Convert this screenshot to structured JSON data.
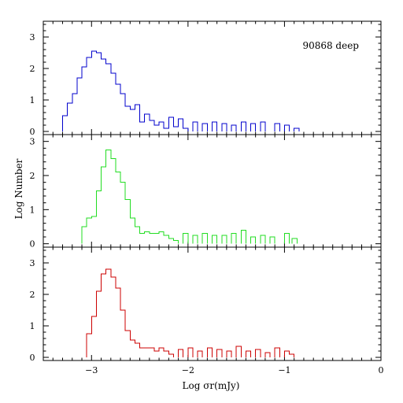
{
  "chart_data": {
    "type": "histogram",
    "xlabel": "Log σr(mJy)",
    "ylabel": "Log Number",
    "xlim": [
      -3.5,
      0
    ],
    "x_ticks": [
      -3,
      -2,
      -1,
      0
    ],
    "x_tick_labels": [
      "−3",
      "−2",
      "−1",
      "0"
    ],
    "bin_width": 0.05,
    "panels": [
      {
        "annotation": "90868 deep",
        "color": "#0000cc",
        "ylim": [
          -0.1,
          3.5
        ],
        "y_ticks": [
          0,
          1,
          2,
          3
        ],
        "y_tick_labels": [
          "0",
          "1",
          "2",
          "3"
        ],
        "bins": [
          [
            -3.3,
            0.5
          ],
          [
            -3.25,
            0.9
          ],
          [
            -3.2,
            1.2
          ],
          [
            -3.15,
            1.7
          ],
          [
            -3.1,
            2.05
          ],
          [
            -3.05,
            2.35
          ],
          [
            -3.0,
            2.55
          ],
          [
            -2.95,
            2.5
          ],
          [
            -2.9,
            2.3
          ],
          [
            -2.85,
            2.15
          ],
          [
            -2.8,
            1.85
          ],
          [
            -2.75,
            1.5
          ],
          [
            -2.7,
            1.2
          ],
          [
            -2.65,
            0.8
          ],
          [
            -2.6,
            0.7
          ],
          [
            -2.55,
            0.85
          ],
          [
            -2.5,
            0.3
          ],
          [
            -2.45,
            0.55
          ],
          [
            -2.4,
            0.35
          ],
          [
            -2.35,
            0.2
          ],
          [
            -2.3,
            0.3
          ],
          [
            -2.25,
            0.1
          ],
          [
            -2.2,
            0.45
          ],
          [
            -2.15,
            0.15
          ],
          [
            -2.1,
            0.4
          ],
          [
            -2.05,
            0.1
          ],
          [
            -1.95,
            0.3
          ],
          [
            -1.85,
            0.25
          ],
          [
            -1.75,
            0.3
          ],
          [
            -1.65,
            0.25
          ],
          [
            -1.55,
            0.2
          ],
          [
            -1.45,
            0.3
          ],
          [
            -1.35,
            0.25
          ],
          [
            -1.25,
            0.3
          ],
          [
            -1.1,
            0.25
          ],
          [
            -1.0,
            0.2
          ],
          [
            -0.9,
            0.1
          ]
        ]
      },
      {
        "annotation": "",
        "color": "#22dd22",
        "ylim": [
          -0.1,
          3.2
        ],
        "y_ticks": [
          0,
          1,
          2,
          3
        ],
        "y_tick_labels": [
          "0",
          "1",
          "2",
          "3"
        ],
        "bins": [
          [
            -3.1,
            0.5
          ],
          [
            -3.05,
            0.75
          ],
          [
            -3.0,
            0.8
          ],
          [
            -2.95,
            1.55
          ],
          [
            -2.9,
            2.25
          ],
          [
            -2.85,
            2.75
          ],
          [
            -2.8,
            2.5
          ],
          [
            -2.75,
            2.1
          ],
          [
            -2.7,
            1.8
          ],
          [
            -2.65,
            1.3
          ],
          [
            -2.6,
            0.75
          ],
          [
            -2.55,
            0.5
          ],
          [
            -2.5,
            0.3
          ],
          [
            -2.45,
            0.35
          ],
          [
            -2.4,
            0.3
          ],
          [
            -2.35,
            0.3
          ],
          [
            -2.3,
            0.35
          ],
          [
            -2.25,
            0.25
          ],
          [
            -2.2,
            0.15
          ],
          [
            -2.15,
            0.1
          ],
          [
            -2.05,
            0.3
          ],
          [
            -1.95,
            0.25
          ],
          [
            -1.85,
            0.3
          ],
          [
            -1.75,
            0.25
          ],
          [
            -1.65,
            0.25
          ],
          [
            -1.55,
            0.3
          ],
          [
            -1.45,
            0.4
          ],
          [
            -1.35,
            0.2
          ],
          [
            -1.25,
            0.25
          ],
          [
            -1.15,
            0.2
          ],
          [
            -1.0,
            0.3
          ],
          [
            -0.92,
            0.15
          ]
        ]
      },
      {
        "annotation": "",
        "color": "#cc0000",
        "ylim": [
          -0.1,
          3.5
        ],
        "y_ticks": [
          0,
          1,
          2,
          3
        ],
        "y_tick_labels": [
          "0",
          "1",
          "2",
          "3"
        ],
        "bins": [
          [
            -3.05,
            0.75
          ],
          [
            -3.0,
            1.3
          ],
          [
            -2.95,
            2.1
          ],
          [
            -2.9,
            2.65
          ],
          [
            -2.85,
            2.8
          ],
          [
            -2.8,
            2.55
          ],
          [
            -2.75,
            2.2
          ],
          [
            -2.7,
            1.5
          ],
          [
            -2.65,
            0.85
          ],
          [
            -2.6,
            0.55
          ],
          [
            -2.55,
            0.45
          ],
          [
            -2.5,
            0.3
          ],
          [
            -2.45,
            0.3
          ],
          [
            -2.4,
            0.3
          ],
          [
            -2.35,
            0.2
          ],
          [
            -2.3,
            0.3
          ],
          [
            -2.25,
            0.2
          ],
          [
            -2.2,
            0.1
          ],
          [
            -2.1,
            0.25
          ],
          [
            -2.0,
            0.3
          ],
          [
            -1.9,
            0.2
          ],
          [
            -1.8,
            0.3
          ],
          [
            -1.7,
            0.25
          ],
          [
            -1.6,
            0.2
          ],
          [
            -1.5,
            0.35
          ],
          [
            -1.4,
            0.2
          ],
          [
            -1.3,
            0.25
          ],
          [
            -1.2,
            0.15
          ],
          [
            -1.1,
            0.3
          ],
          [
            -1.0,
            0.2
          ],
          [
            -0.95,
            0.1
          ]
        ]
      }
    ]
  }
}
